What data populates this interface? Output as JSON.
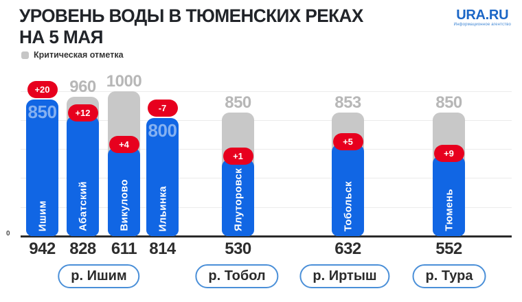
{
  "header": {
    "title_line1": "УРОВЕНЬ ВОДЫ В ТЮМЕНСКИХ РЕКАХ",
    "title_line2": "НА 5 МАЯ",
    "logo_text": "URA.RU",
    "logo_subtext": "Информационное агентство"
  },
  "legend": {
    "label": "Критическая отметка",
    "color": "#c8c8c8"
  },
  "axis": {
    "zero_label": "0"
  },
  "colors": {
    "level_blue": "#1166e4",
    "critical_gray": "#c8c8c8",
    "change_red": "#e7001e",
    "gray_label": "#b7b7b7",
    "inside_label_blue": "#85b1f1",
    "logo_blue": "#1b66c6",
    "group_border_blue": "#4a8fd8"
  },
  "chart_data": {
    "type": "bar",
    "title": "Уровень воды в тюменских реках на 5 мая",
    "legend_entries": [
      "Критическая отметка"
    ],
    "ylim": [
      0,
      1050
    ],
    "grid": true,
    "tick_values": [
      0,
      200,
      400,
      600,
      800,
      1000
    ],
    "stations": [
      {
        "name": "Ишим",
        "river": "р. Ишим",
        "value": 942,
        "critical": 850,
        "change": "+20",
        "exceeds_critical": true
      },
      {
        "name": "Абатский",
        "river": "р. Ишим",
        "value": 828,
        "critical": 960,
        "change": "+12",
        "exceeds_critical": false
      },
      {
        "name": "Викулово",
        "river": "р. Ишим",
        "value": 611,
        "critical": 1000,
        "change": "+4",
        "exceeds_critical": false
      },
      {
        "name": "Ильинка",
        "river": "р. Ишим",
        "value": 814,
        "critical": 800,
        "change": "-7",
        "exceeds_critical": true
      },
      {
        "name": "Ялуторовск",
        "river": "р. Тобол",
        "value": 530,
        "critical": 850,
        "change": "+1",
        "exceeds_critical": false
      },
      {
        "name": "Тобольск",
        "river": "р. Иртыш",
        "value": 632,
        "critical": 853,
        "change": "+5",
        "exceeds_critical": false
      },
      {
        "name": "Тюмень",
        "river": "р. Тура",
        "value": 552,
        "critical": 850,
        "change": "+9",
        "exceeds_critical": false
      }
    ],
    "groups": [
      {
        "label": "р. Ишим",
        "stations": [
          "Ишим",
          "Абатский",
          "Викулово",
          "Ильинка"
        ]
      },
      {
        "label": "р. Тобол",
        "stations": [
          "Ялуторовск"
        ]
      },
      {
        "label": "р. Иртыш",
        "stations": [
          "Тобольск"
        ]
      },
      {
        "label": "р. Тура",
        "stations": [
          "Тюмень"
        ]
      }
    ]
  }
}
